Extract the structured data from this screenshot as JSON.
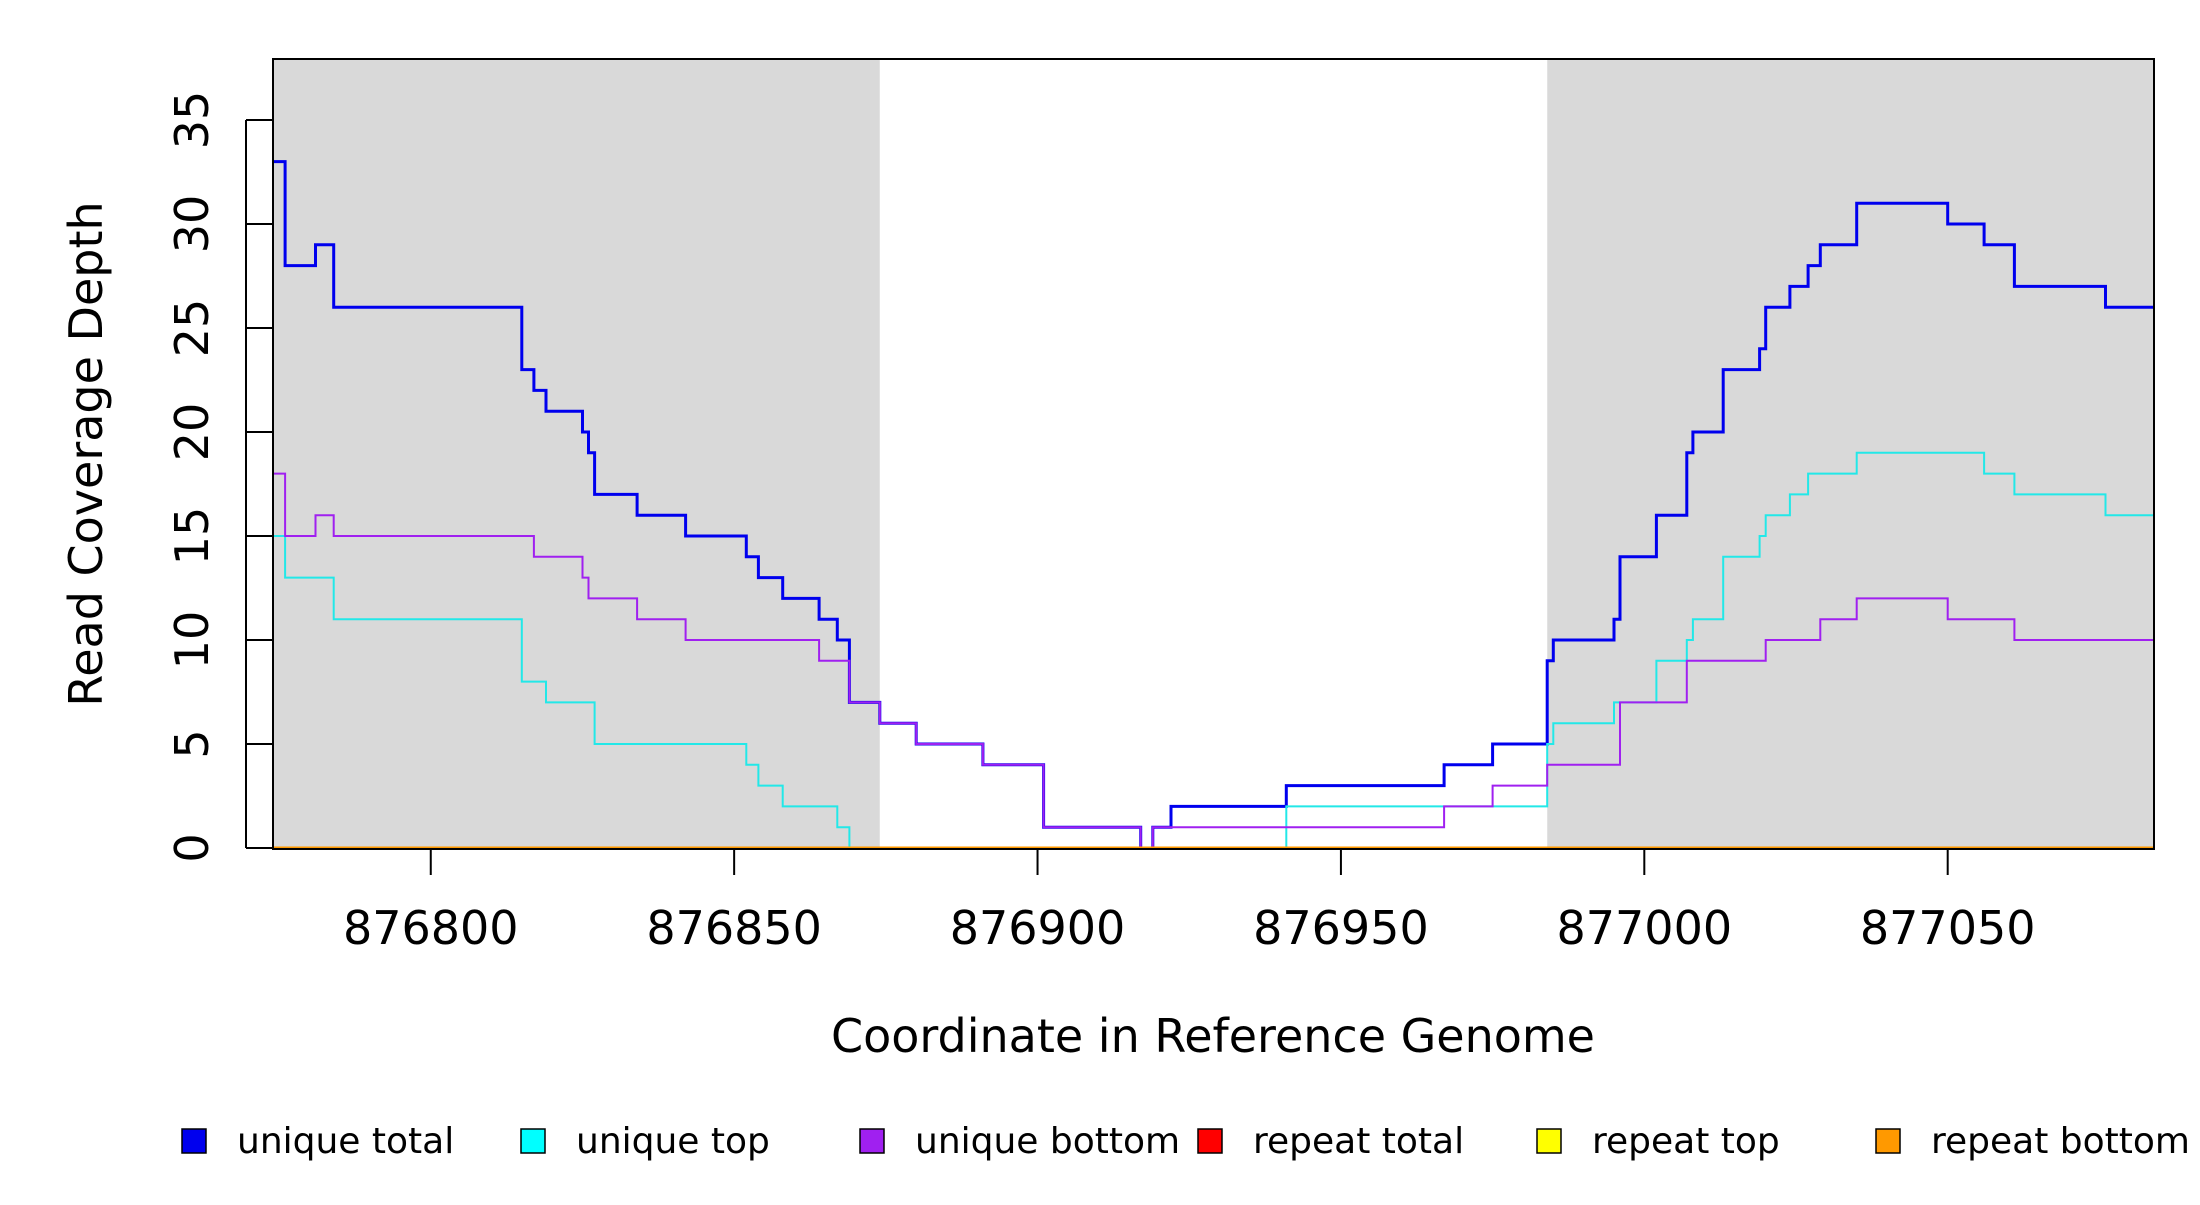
{
  "chart_data": {
    "type": "line",
    "step": true,
    "xlabel": "Coordinate in Reference Genome",
    "ylabel": "Read Coverage Depth",
    "xlim": [
      876774,
      877084
    ],
    "ylim": [
      0,
      38
    ],
    "x_ticks": [
      876800,
      876850,
      876900,
      876950,
      877000,
      877050
    ],
    "x_tick_labels": [
      "876800",
      "876850",
      "876900",
      "876950",
      "877000",
      "877050"
    ],
    "y_ticks": [
      0,
      5,
      10,
      15,
      20,
      25,
      30,
      35
    ],
    "y_tick_labels": [
      "0",
      "5",
      "10",
      "15",
      "20",
      "25",
      "30",
      "35"
    ],
    "shaded_regions": [
      {
        "from": 876774,
        "to": 876874,
        "color": "#d9d9d9"
      },
      {
        "from": 876984,
        "to": 877084,
        "color": "#d9d9d9"
      }
    ],
    "series": [
      {
        "name": "unique total",
        "color": "#0000ee",
        "points": [
          [
            876774,
            33
          ],
          [
            876776,
            28
          ],
          [
            876781,
            29
          ],
          [
            876784,
            26
          ],
          [
            876815,
            23
          ],
          [
            876817,
            22
          ],
          [
            876819,
            21
          ],
          [
            876825,
            20
          ],
          [
            876826,
            19
          ],
          [
            876827,
            17
          ],
          [
            876834,
            16
          ],
          [
            876842,
            15
          ],
          [
            876852,
            14
          ],
          [
            876854,
            13
          ],
          [
            876858,
            12
          ],
          [
            876864,
            11
          ],
          [
            876867,
            10
          ],
          [
            876869,
            7
          ],
          [
            876874,
            6
          ],
          [
            876880,
            5
          ],
          [
            876891,
            4
          ],
          [
            876901,
            1
          ],
          [
            876917,
            0
          ],
          [
            876919,
            1
          ],
          [
            876922,
            2
          ],
          [
            876941,
            3
          ],
          [
            876967,
            4
          ],
          [
            876975,
            5
          ],
          [
            876984,
            9
          ],
          [
            876985,
            10
          ],
          [
            876995,
            11
          ],
          [
            876996,
            14
          ],
          [
            877002,
            16
          ],
          [
            877007,
            19
          ],
          [
            877008,
            20
          ],
          [
            877013,
            23
          ],
          [
            877019,
            24
          ],
          [
            877020,
            26
          ],
          [
            877024,
            27
          ],
          [
            877027,
            28
          ],
          [
            877029,
            29
          ],
          [
            877035,
            31
          ],
          [
            877050,
            30
          ],
          [
            877056,
            29
          ],
          [
            877061,
            27
          ],
          [
            877076,
            26
          ],
          [
            877084,
            26
          ]
        ]
      },
      {
        "name": "unique top",
        "color": "#22e8e8",
        "points": [
          [
            876774,
            15
          ],
          [
            876776,
            13
          ],
          [
            876784,
            11
          ],
          [
            876815,
            8
          ],
          [
            876819,
            7
          ],
          [
            876827,
            5
          ],
          [
            876852,
            4
          ],
          [
            876854,
            3
          ],
          [
            876858,
            2
          ],
          [
            876867,
            1
          ],
          [
            876869,
            0
          ],
          [
            876941,
            2
          ],
          [
            876984,
            5
          ],
          [
            876985,
            6
          ],
          [
            876995,
            7
          ],
          [
            877002,
            9
          ],
          [
            877007,
            10
          ],
          [
            877008,
            11
          ],
          [
            877013,
            14
          ],
          [
            877019,
            15
          ],
          [
            877020,
            16
          ],
          [
            877024,
            17
          ],
          [
            877027,
            18
          ],
          [
            877035,
            19
          ],
          [
            877056,
            18
          ],
          [
            877061,
            17
          ],
          [
            877076,
            16
          ],
          [
            877084,
            16
          ]
        ]
      },
      {
        "name": "unique bottom",
        "color": "#a020f0",
        "points": [
          [
            876774,
            18
          ],
          [
            876776,
            15
          ],
          [
            876781,
            16
          ],
          [
            876784,
            15
          ],
          [
            876817,
            14
          ],
          [
            876825,
            13
          ],
          [
            876826,
            12
          ],
          [
            876834,
            11
          ],
          [
            876842,
            10
          ],
          [
            876864,
            9
          ],
          [
            876869,
            7
          ],
          [
            876874,
            6
          ],
          [
            876880,
            5
          ],
          [
            876891,
            4
          ],
          [
            876901,
            1
          ],
          [
            876917,
            0
          ],
          [
            876919,
            1
          ],
          [
            876967,
            2
          ],
          [
            876975,
            3
          ],
          [
            876984,
            4
          ],
          [
            876996,
            7
          ],
          [
            877007,
            9
          ],
          [
            877020,
            10
          ],
          [
            877029,
            11
          ],
          [
            877035,
            12
          ],
          [
            877050,
            11
          ],
          [
            877061,
            10
          ],
          [
            877084,
            10
          ]
        ]
      },
      {
        "name": "repeat total",
        "color": "#ff0000",
        "points": [
          [
            876774,
            0
          ],
          [
            877084,
            0
          ]
        ]
      },
      {
        "name": "repeat top",
        "color": "#ffff00",
        "points": [
          [
            876774,
            0
          ],
          [
            877084,
            0
          ]
        ]
      },
      {
        "name": "repeat bottom",
        "color": "#ff9900",
        "points": [
          [
            876774,
            0
          ],
          [
            877084,
            0
          ]
        ]
      }
    ],
    "legend": {
      "placement": "bottom",
      "items": [
        {
          "label": "unique total",
          "color": "#0000ee"
        },
        {
          "label": "unique top",
          "color": "#00ffff"
        },
        {
          "label": "unique bottom",
          "color": "#a020f0"
        },
        {
          "label": "repeat total",
          "color": "#ff0000"
        },
        {
          "label": "repeat top",
          "color": "#ffff00"
        },
        {
          "label": "repeat bottom",
          "color": "#ff9900"
        }
      ]
    }
  }
}
